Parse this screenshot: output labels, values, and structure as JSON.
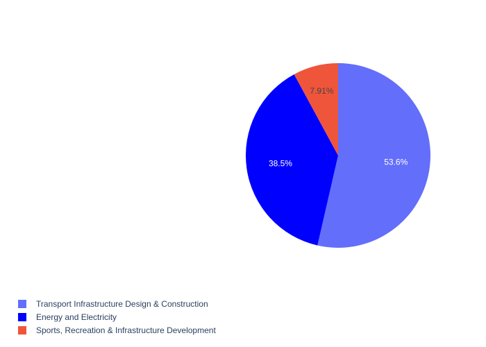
{
  "chart_data": {
    "type": "pie",
    "categories": [
      "Transport Infrastructure Design & Construction",
      "Energy and Electricity",
      "Sports, Recreation & Infrastructure Development"
    ],
    "values": [
      53.6,
      38.5,
      7.91
    ],
    "labels": [
      "53.6%",
      "38.5%",
      "7.91%"
    ],
    "colors": [
      "#636efa",
      "#0000ff",
      "#ef553b"
    ],
    "label_colors": [
      "#ffffff",
      "#ffffff",
      "#444444"
    ],
    "direction": "clockwise",
    "start_angle": "12 o'clock",
    "legend_position": "bottom-left"
  }
}
